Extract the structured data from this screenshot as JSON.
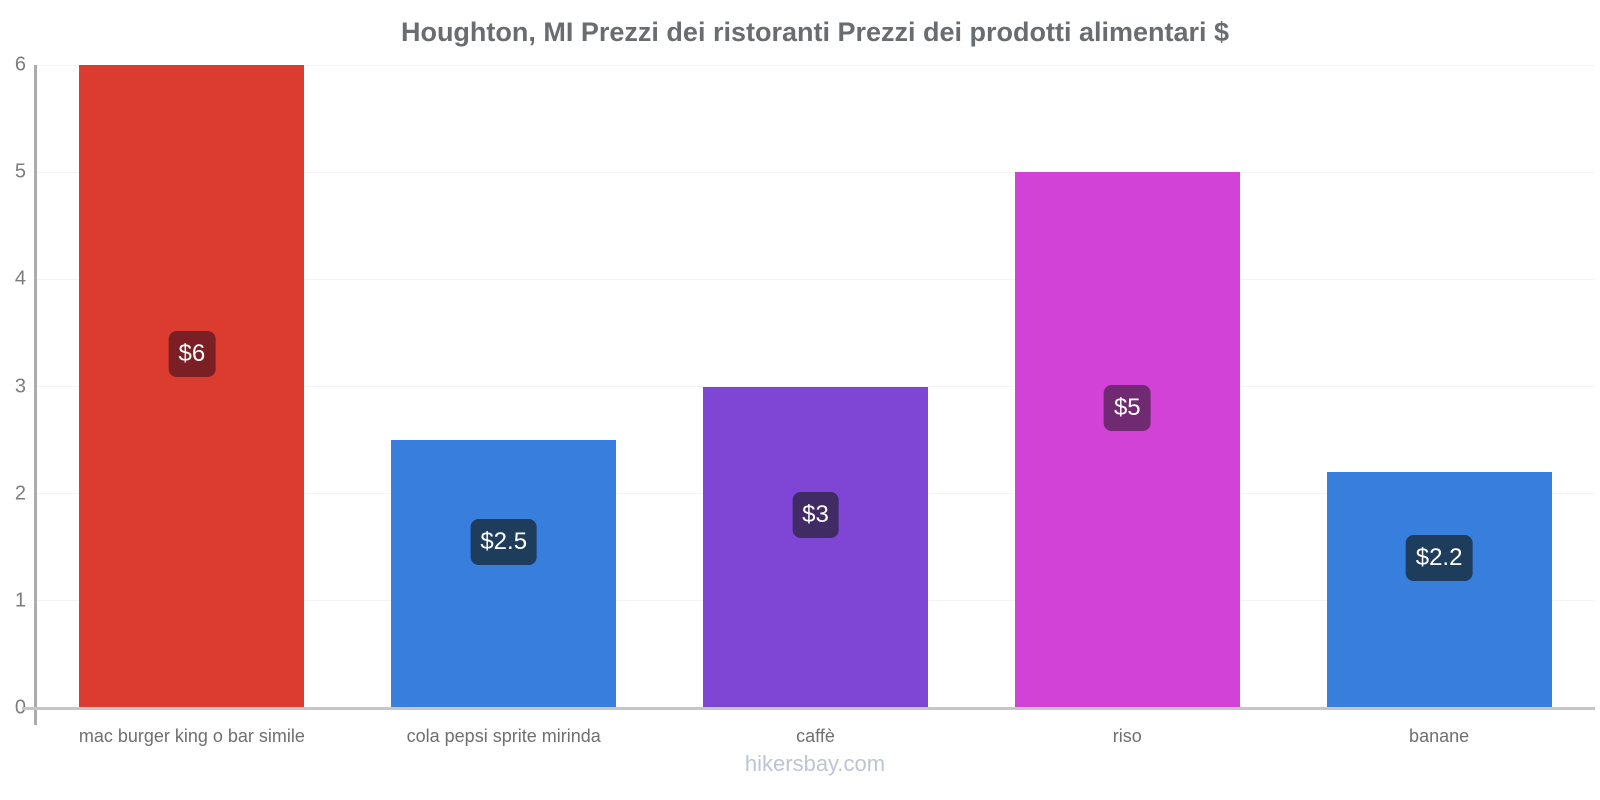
{
  "page": {
    "title": "Houghton, MI Prezzi dei ristoranti Prezzi dei prodotti alimentari $",
    "footer": "hikersbay.com"
  },
  "chart_data": {
    "type": "bar",
    "title": "Houghton, MI Prezzi dei ristoranti Prezzi dei prodotti alimentari $",
    "categories": [
      "mac burger king o bar simile",
      "cola pepsi sprite mirinda",
      "caffè",
      "riso",
      "banane"
    ],
    "values": [
      6,
      2.5,
      3,
      5,
      2.2
    ],
    "value_labels": [
      "$6",
      "$2.5",
      "$3",
      "$5",
      "$2.2"
    ],
    "bar_colors": [
      "#dc3b30",
      "#377edd",
      "#7f45d4",
      "#d342d6",
      "#377edd"
    ],
    "badge_colors": [
      "#7a2025",
      "#1e3d5c",
      "#402b64",
      "#6f2a71",
      "#1e3d5c"
    ],
    "currency": "$",
    "xlabel": "",
    "ylabel": "",
    "ylim": [
      0,
      6
    ],
    "yticks": [
      0,
      1,
      2,
      3,
      4,
      5,
      6
    ],
    "grid": true,
    "legend": "none",
    "watermark": "hikersbay.com"
  }
}
